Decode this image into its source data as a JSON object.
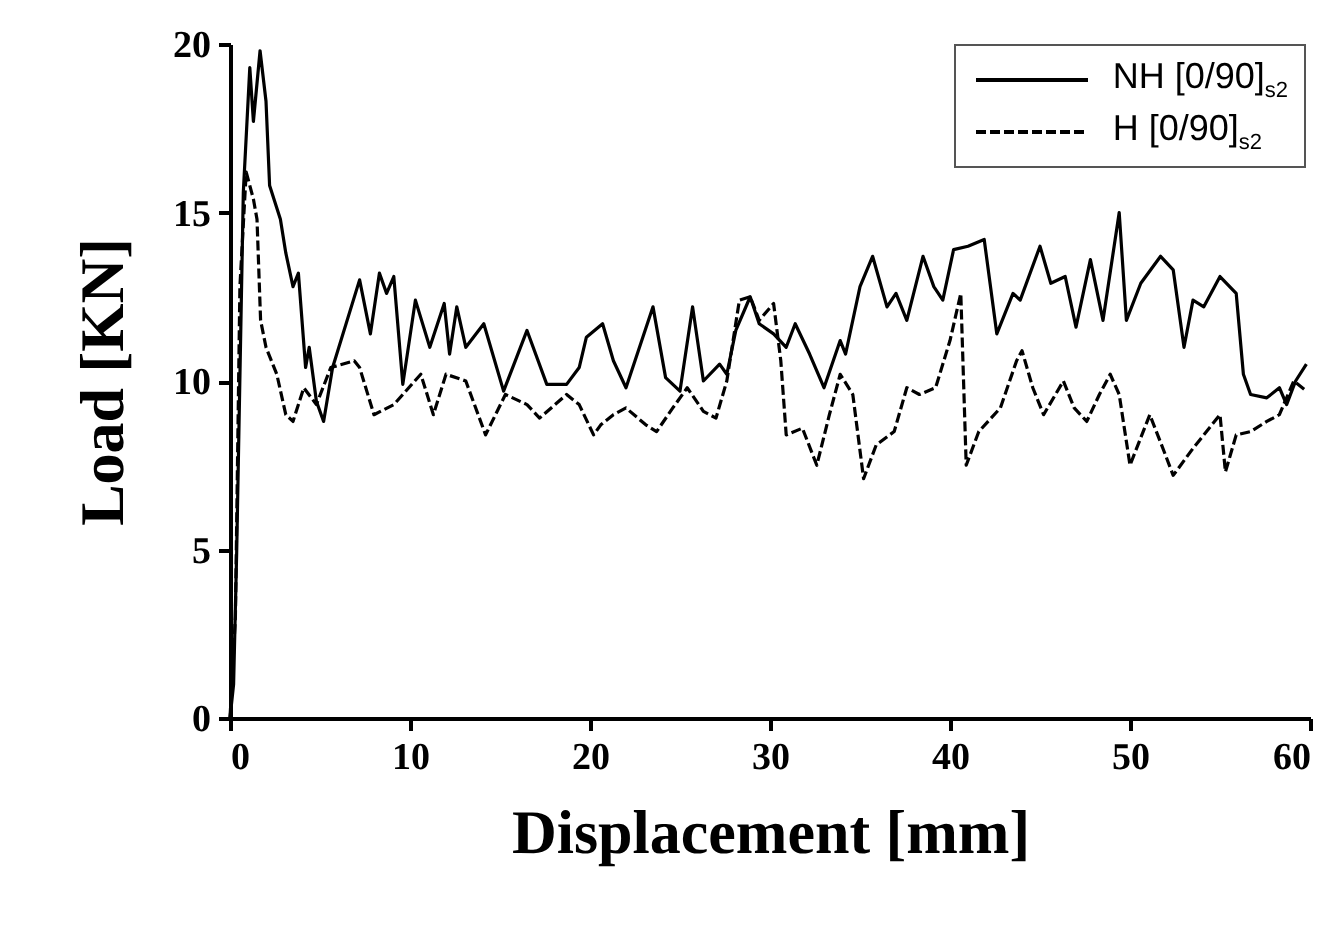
{
  "chart_data": {
    "type": "line",
    "xlabel": "Displacement [mm]",
    "ylabel": "Load [KN]",
    "xlim": [
      0,
      60
    ],
    "ylim": [
      0,
      20
    ],
    "xticks": [
      0,
      10,
      20,
      30,
      40,
      50,
      60
    ],
    "yticks": [
      0,
      5,
      10,
      15,
      20
    ],
    "grid": false,
    "legend": "top right",
    "series": [
      {
        "name": "NH [0/90]$_{s2}$",
        "color": "#000000",
        "line_style": "solid",
        "x": [
          0,
          0.2,
          0.37,
          0.74,
          1.1,
          1.3,
          1.67,
          2.0,
          2.2,
          2.8,
          3.1,
          3.5,
          3.8,
          4.2,
          4.4,
          4.8,
          5.2,
          5.7,
          7.2,
          7.8,
          8.3,
          8.7,
          9.1,
          9.6,
          10.3,
          11.1,
          11.9,
          12.2,
          12.6,
          13.1,
          14.1,
          15.2,
          16.5,
          17.6,
          18.7,
          19.4,
          19.8,
          20.7,
          21.3,
          22.0,
          23.5,
          24.2,
          25.0,
          25.7,
          26.3,
          27.2,
          27.6,
          28.1,
          28.9,
          29.4,
          30.2,
          30.9,
          31.4,
          32.2,
          33.0,
          33.9,
          34.2,
          35.0,
          35.7,
          36.5,
          37.0,
          37.6,
          38.5,
          39.1,
          39.6,
          40.2,
          41.0,
          41.9,
          42.6,
          43.5,
          43.9,
          45.0,
          45.6,
          46.4,
          47.0,
          47.8,
          48.5,
          49.4,
          49.8,
          50.6,
          51.7,
          52.4,
          53.0,
          53.5,
          54.1,
          55.0,
          55.9,
          56.3,
          56.7,
          57.6,
          58.3,
          58.7,
          59.2,
          59.8
        ],
        "values": [
          0,
          1,
          4.9,
          15.6,
          19.3,
          17.7,
          19.8,
          18.3,
          15.8,
          14.8,
          13.8,
          12.8,
          13.2,
          10.4,
          11.0,
          9.4,
          8.8,
          10.4,
          13.0,
          11.4,
          13.2,
          12.6,
          13.1,
          9.9,
          12.4,
          11.0,
          12.3,
          10.8,
          12.2,
          11.0,
          11.7,
          9.7,
          11.5,
          9.9,
          9.9,
          10.4,
          11.3,
          11.7,
          10.6,
          9.8,
          12.2,
          10.1,
          9.7,
          12.2,
          10.0,
          10.5,
          10.2,
          11.5,
          12.5,
          11.7,
          11.4,
          11.0,
          11.7,
          10.8,
          9.8,
          11.2,
          10.8,
          12.8,
          13.7,
          12.2,
          12.6,
          11.8,
          13.7,
          12.8,
          12.4,
          13.9,
          14.0,
          14.2,
          11.4,
          12.6,
          12.4,
          14.0,
          12.9,
          13.1,
          11.6,
          13.6,
          11.8,
          15.0,
          11.8,
          12.9,
          13.7,
          13.3,
          11.0,
          12.4,
          12.2,
          13.1,
          12.6,
          10.2,
          9.6,
          9.5,
          9.8,
          9.3,
          10.0,
          10.5
        ]
      },
      {
        "name": "H [0/90]$_{s2}$",
        "color": "#000000",
        "line_style": "dashed",
        "x": [
          0,
          0.3,
          0.55,
          0.9,
          1.3,
          1.5,
          1.7,
          2.0,
          2.6,
          3.1,
          3.5,
          4.1,
          4.8,
          5.6,
          6.9,
          7.2,
          8.0,
          9.1,
          10.6,
          11.3,
          12.0,
          13.1,
          14.2,
          15.3,
          16.5,
          17.2,
          18.7,
          19.4,
          20.2,
          20.6,
          21.3,
          22.0,
          23.1,
          23.7,
          24.6,
          25.4,
          26.3,
          27.0,
          27.6,
          28.3,
          28.9,
          29.4,
          30.2,
          30.6,
          30.9,
          31.8,
          32.6,
          33.3,
          33.9,
          34.6,
          35.2,
          35.9,
          36.9,
          37.6,
          38.3,
          39.2,
          40.0,
          40.6,
          40.9,
          41.6,
          42.8,
          43.7,
          44.0,
          44.6,
          45.2,
          46.3,
          46.9,
          47.6,
          48.3,
          48.9,
          49.4,
          50.0,
          51.1,
          51.9,
          52.4,
          53.5,
          54.1,
          55.0,
          55.3,
          55.9,
          56.7,
          57.6,
          58.3,
          59.1,
          59.8
        ],
        "values": [
          0,
          3,
          12.8,
          16.2,
          15.4,
          14.8,
          11.8,
          11.0,
          10.2,
          9.0,
          8.8,
          9.8,
          9.3,
          10.4,
          10.6,
          10.4,
          9.0,
          9.3,
          10.2,
          9.0,
          10.2,
          10.0,
          8.4,
          9.6,
          9.3,
          8.9,
          9.6,
          9.3,
          8.4,
          8.7,
          9.0,
          9.2,
          8.7,
          8.5,
          9.2,
          9.8,
          9.1,
          8.9,
          10.0,
          12.4,
          12.5,
          11.8,
          12.3,
          10.6,
          8.4,
          8.6,
          7.5,
          9.0,
          10.2,
          9.6,
          7.1,
          8.1,
          8.5,
          9.8,
          9.6,
          9.8,
          11.2,
          12.6,
          7.5,
          8.5,
          9.2,
          10.6,
          10.9,
          9.8,
          9.0,
          10.0,
          9.2,
          8.8,
          9.6,
          10.2,
          9.6,
          7.5,
          9.0,
          7.9,
          7.2,
          8.0,
          8.4,
          9.0,
          7.3,
          8.4,
          8.5,
          8.8,
          9.0,
          10.0,
          9.7
        ]
      }
    ]
  }
}
